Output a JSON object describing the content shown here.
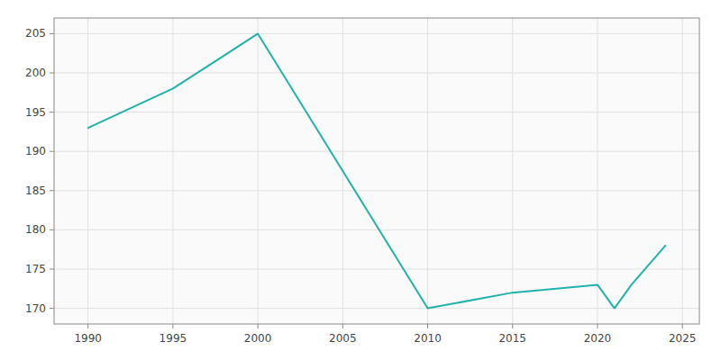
{
  "chart_data": {
    "type": "line",
    "x": [
      1990,
      1995,
      2000,
      2010,
      2015,
      2020,
      2021,
      2022,
      2024
    ],
    "values": [
      193,
      198,
      205,
      170,
      172,
      173,
      170,
      173,
      178
    ],
    "color": "#20B2AA",
    "xlim": [
      1988,
      2026
    ],
    "ylim": [
      168,
      207
    ],
    "xticks": [
      1990,
      1995,
      2000,
      2005,
      2010,
      2015,
      2020,
      2025
    ],
    "yticks": [
      170,
      175,
      180,
      185,
      190,
      195,
      200,
      205
    ],
    "grid": true
  }
}
